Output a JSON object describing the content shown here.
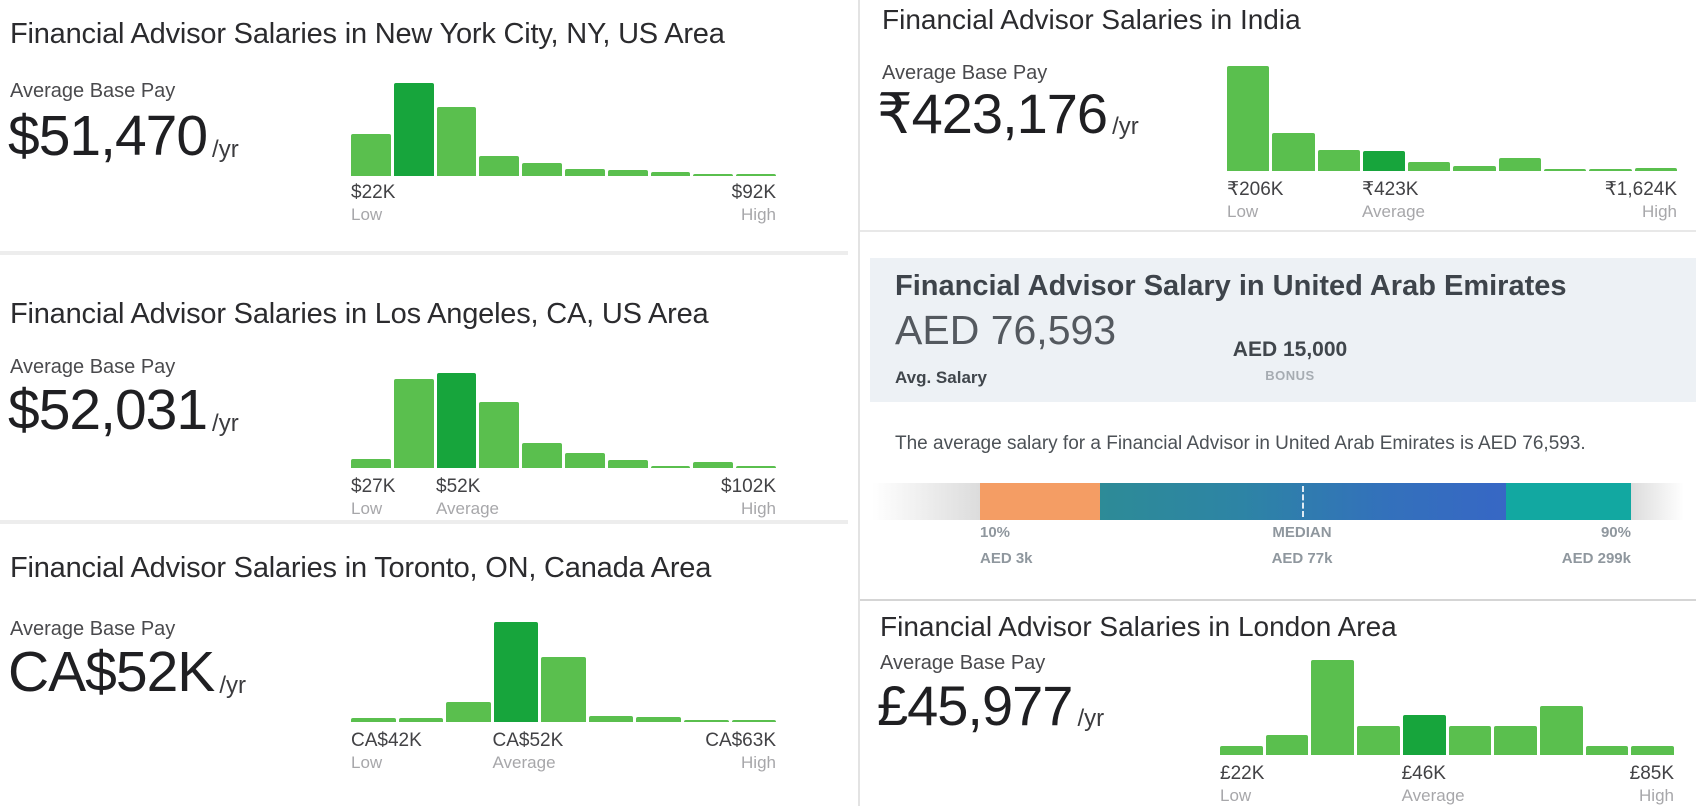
{
  "colors": {
    "bar_light_green": "#5abf4e",
    "bar_dark_green": "#17a53c",
    "uae_card_background": "#edf1f5",
    "percentile_orange": "#f49d64",
    "percentile_teal_left": "#2d8b97",
    "percentile_blue": "#3767c5",
    "percentile_teal_right": "#12a8a1"
  },
  "chart_data": [
    {
      "id": "new_york",
      "type": "bar",
      "title": "Financial Advisor Salaries in New York City, NY, US Area",
      "avg_base_pay_label": "Average Base Pay",
      "average_base_pay": "$51,470",
      "period": "/yr",
      "values_pct_of_max": [
        45,
        100,
        74,
        21,
        14,
        8,
        6,
        4,
        2,
        2
      ],
      "highlight_index": 1,
      "low": {
        "value": "$22K",
        "label": "Low"
      },
      "high": {
        "value": "$92K",
        "label": "High"
      }
    },
    {
      "id": "los_angeles",
      "type": "bar",
      "title": "Financial Advisor Salaries in Los Angeles, CA, US Area",
      "avg_base_pay_label": "Average Base Pay",
      "average_base_pay": "$52,031",
      "period": "/yr",
      "values_pct_of_max": [
        10,
        94,
        100,
        69,
        26,
        16,
        8,
        2,
        6,
        2
      ],
      "highlight_index": 2,
      "low": {
        "value": "$27K",
        "label": "Low"
      },
      "average": {
        "value": "$52K",
        "label": "Average"
      },
      "high": {
        "value": "$102K",
        "label": "High"
      }
    },
    {
      "id": "toronto",
      "type": "bar",
      "title": "Financial Advisor Salaries in Toronto, ON, Canada Area",
      "avg_base_pay_label": "Average Base Pay",
      "average_base_pay": "CA$52K",
      "period": "/yr",
      "values_pct_of_max": [
        4,
        4,
        20,
        100,
        65,
        6,
        5,
        1.5,
        1.5
      ],
      "highlight_index": 3,
      "low": {
        "value": "CA$42K",
        "label": "Low"
      },
      "average": {
        "value": "CA$52K",
        "label": "Average"
      },
      "high": {
        "value": "CA$63K",
        "label": "High"
      }
    },
    {
      "id": "india",
      "type": "bar",
      "title": "Financial Advisor Salaries in India",
      "avg_base_pay_label": "Average Base Pay",
      "average_base_pay": "₹423,176",
      "period": "/yr",
      "values_pct_of_max": [
        100,
        36,
        20,
        19,
        9,
        5,
        12,
        1.5,
        1.5,
        2.5
      ],
      "highlight_index": 3,
      "low": {
        "value": "₹206K",
        "label": "Low"
      },
      "average": {
        "value": "₹423K",
        "label": "Average"
      },
      "high": {
        "value": "₹1,624K",
        "label": "High"
      }
    },
    {
      "id": "london",
      "type": "bar",
      "title": "Financial Advisor Salaries in London Area",
      "avg_base_pay_label": "Average Base Pay",
      "average_base_pay": "£45,977",
      "period": "/yr",
      "values_pct_of_max": [
        10,
        21,
        100,
        31,
        42,
        31,
        31,
        52,
        9,
        9
      ],
      "highlight_index": 4,
      "low": {
        "value": "£22K",
        "label": "Low"
      },
      "average": {
        "value": "£46K",
        "label": "Average"
      },
      "high": {
        "value": "£85K",
        "label": "High"
      }
    },
    {
      "id": "uae_percentiles",
      "type": "percentile-bar",
      "title": "Financial Advisor Salary in United Arab Emirates",
      "avg_salary": {
        "value": "AED 76,593",
        "label": "Avg. Salary"
      },
      "bonus": {
        "value": "AED 15,000",
        "label": "BONUS"
      },
      "description": "The average salary for a Financial Advisor in United Arab Emirates is AED 76,593.",
      "p10": {
        "label": "10%",
        "value": "AED 3k"
      },
      "median": {
        "label": "MEDIAN",
        "value": "AED 77k"
      },
      "p90": {
        "label": "90%",
        "value": "AED 299k"
      },
      "segments": [
        "low-fade",
        "10th-25th orange",
        "25th-75th teal-to-blue gradient",
        "75th-90th teal",
        "high-fade"
      ]
    }
  ]
}
